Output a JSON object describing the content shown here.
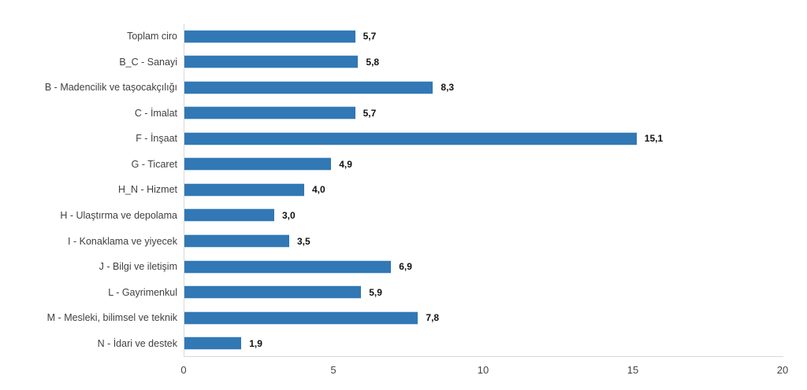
{
  "chart_data": {
    "type": "bar",
    "orientation": "horizontal",
    "categories": [
      "Toplam ciro",
      "B_C - Sanayi",
      "B - Madencilik ve taşocakçılığı",
      "C - İmalat",
      "F - İnşaat",
      "G - Ticaret",
      "H_N - Hizmet",
      "H - Ulaştırma ve depolama",
      "I - Konaklama ve yiyecek",
      "J - Bilgi ve iletişim",
      "L - Gayrimenkul",
      "M - Mesleki, bilimsel ve teknik",
      "N - İdari ve destek"
    ],
    "values": [
      5.7,
      5.8,
      8.3,
      5.7,
      15.1,
      4.9,
      4.0,
      3.0,
      3.5,
      6.9,
      5.9,
      7.8,
      1.9
    ],
    "value_labels": [
      "5,7",
      "5,8",
      "8,3",
      "5,7",
      "15,1",
      "4,9",
      "4,0",
      "3,0",
      "3,5",
      "6,9",
      "5,9",
      "7,8",
      "1,9"
    ],
    "xlim": [
      0,
      20
    ],
    "x_ticks": [
      0,
      5,
      10,
      15,
      20
    ],
    "grid": false,
    "legend": false,
    "bar_color": "#3178B5",
    "axis_line_color": "#D9D9D9",
    "category_label_color": "#404040",
    "value_label_color": "#111111",
    "tick_label_color": "#444444"
  }
}
